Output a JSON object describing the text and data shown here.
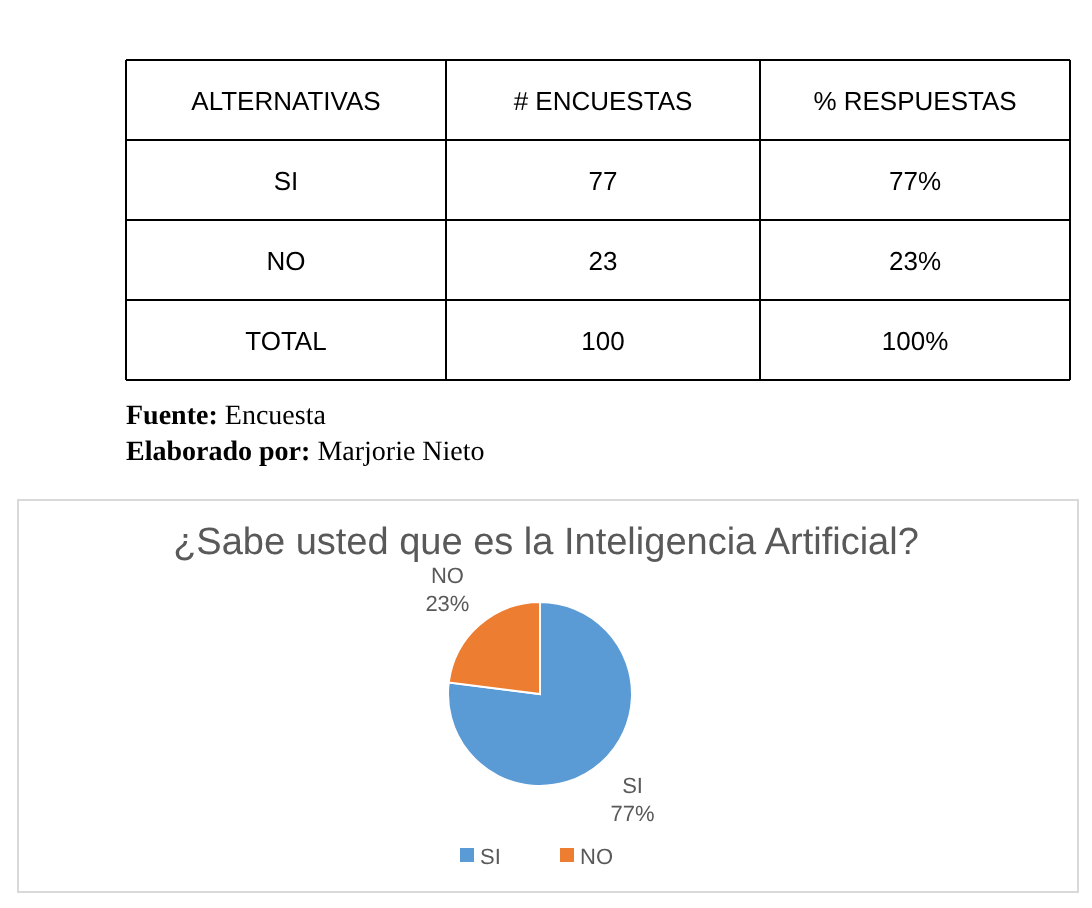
{
  "chart_data": [
    {
      "type": "other",
      "annotations": [
        "ALTERNATIVAS",
        "# ENCUESTAS",
        "% RESPUESTAS",
        "SI",
        "77",
        "77%",
        "NO",
        "23",
        "23%",
        "TOTAL",
        "100",
        "100%",
        "Fuente: Encuesta",
        "Elaborado por: Marjorie Nieto"
      ]
    },
    {
      "type": "pie",
      "title": "¿Sabe usted que es la Inteligencia Artificial?",
      "categories": [
        "SI",
        "NO"
      ],
      "values": [
        77,
        23
      ],
      "colors": [
        "#5b9bd5",
        "#ed7d31"
      ],
      "value_labels": [
        "77%",
        "23%"
      ],
      "legend": "bottom"
    }
  ]
}
